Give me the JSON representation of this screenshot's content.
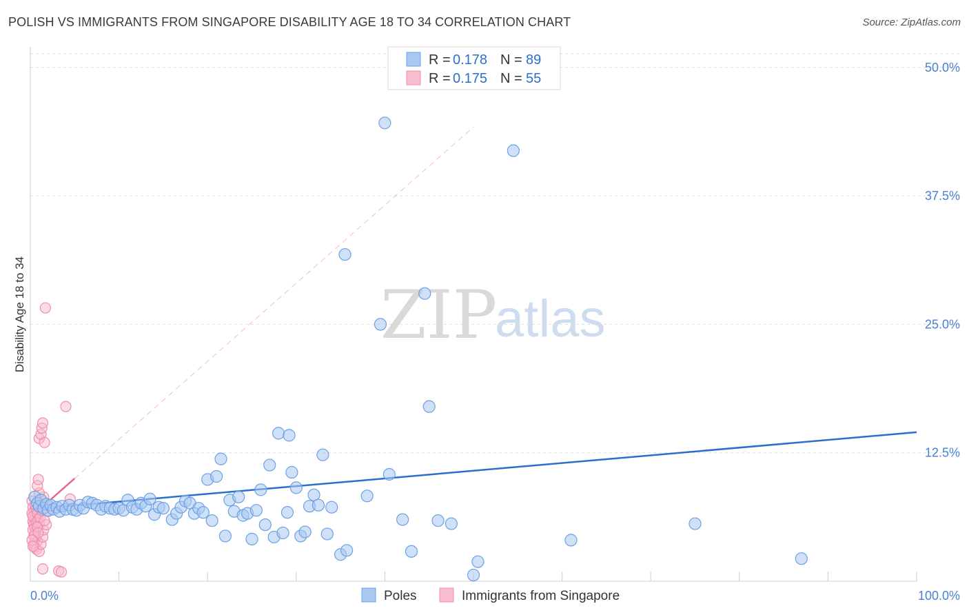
{
  "header": {
    "title": "POLISH VS IMMIGRANTS FROM SINGAPORE DISABILITY AGE 18 TO 34 CORRELATION CHART",
    "source": "Source: ZipAtlas.com"
  },
  "watermark": {
    "zip": "ZIP",
    "atlas": "atlas"
  },
  "colors": {
    "poles": "#6aa0e6",
    "poles_fill": "#a9c8f0",
    "poles_line": "#2a6fcc",
    "singapore": "#f08cab",
    "singapore_fill": "#f7bccd",
    "singapore_line": "#e8668c",
    "tick_label": "#4a7fd4"
  },
  "legend": {
    "rows": [
      {
        "r_label": "R = ",
        "r_value": "0.178",
        "n_label": "N = ",
        "n_value": "89"
      },
      {
        "r_label": "R = ",
        "r_value": "0.175",
        "n_label": "N = ",
        "n_value": "55"
      }
    ],
    "series": [
      "Poles",
      "Immigrants from Singapore"
    ]
  },
  "chart_data": {
    "type": "scatter",
    "title": "POLISH VS IMMIGRANTS FROM SINGAPORE DISABILITY AGE 18 TO 34 CORRELATION CHART",
    "xlabel": "",
    "ylabel": "Disability Age 18 to 34",
    "xlim": [
      0,
      100
    ],
    "ylim": [
      0,
      52
    ],
    "x_tick_labels": [
      "0.0%",
      "100.0%"
    ],
    "y_ticks": [
      12.5,
      25.0,
      37.5,
      50.0
    ],
    "y_tick_labels": [
      "12.5%",
      "25.0%",
      "37.5%",
      "50.0%"
    ],
    "series": [
      {
        "name": "Poles",
        "r": 0.178,
        "n": 89,
        "trend": {
          "x": [
            0,
            100
          ],
          "y": [
            7.0,
            14.5
          ]
        },
        "points": [
          [
            0.5,
            8.2
          ],
          [
            0.8,
            7.6
          ],
          [
            1.0,
            7.3
          ],
          [
            1.2,
            7.9
          ],
          [
            1.5,
            7.1
          ],
          [
            1.8,
            7.5
          ],
          [
            2.0,
            6.9
          ],
          [
            2.3,
            7.4
          ],
          [
            2.6,
            7.0
          ],
          [
            3.0,
            7.2
          ],
          [
            3.3,
            6.8
          ],
          [
            3.6,
            7.3
          ],
          [
            4.0,
            7.0
          ],
          [
            4.4,
            7.4
          ],
          [
            4.8,
            7.0
          ],
          [
            5.2,
            6.9
          ],
          [
            5.6,
            7.4
          ],
          [
            6.0,
            7.1
          ],
          [
            6.5,
            7.7
          ],
          [
            7.0,
            7.6
          ],
          [
            7.5,
            7.4
          ],
          [
            8.0,
            7.0
          ],
          [
            8.5,
            7.3
          ],
          [
            9.0,
            7.1
          ],
          [
            9.5,
            7.0
          ],
          [
            10.0,
            7.1
          ],
          [
            10.5,
            6.9
          ],
          [
            11.0,
            7.9
          ],
          [
            11.5,
            7.2
          ],
          [
            12.0,
            7.0
          ],
          [
            12.5,
            7.6
          ],
          [
            13.0,
            7.3
          ],
          [
            13.5,
            8.0
          ],
          [
            14.0,
            6.5
          ],
          [
            14.5,
            7.2
          ],
          [
            15.0,
            7.1
          ],
          [
            16.0,
            6.0
          ],
          [
            16.5,
            6.6
          ],
          [
            17.0,
            7.2
          ],
          [
            17.5,
            7.8
          ],
          [
            18.0,
            7.6
          ],
          [
            18.5,
            6.6
          ],
          [
            19.0,
            7.1
          ],
          [
            19.5,
            6.7
          ],
          [
            20.0,
            9.9
          ],
          [
            20.5,
            5.9
          ],
          [
            21.0,
            10.2
          ],
          [
            21.5,
            11.9
          ],
          [
            22.0,
            4.4
          ],
          [
            22.5,
            7.9
          ],
          [
            23.0,
            6.8
          ],
          [
            23.5,
            8.2
          ],
          [
            24.0,
            6.4
          ],
          [
            24.5,
            6.6
          ],
          [
            25.0,
            4.1
          ],
          [
            25.5,
            6.9
          ],
          [
            26.0,
            8.9
          ],
          [
            26.5,
            5.5
          ],
          [
            27.0,
            11.3
          ],
          [
            27.5,
            4.3
          ],
          [
            28.0,
            14.4
          ],
          [
            28.5,
            4.7
          ],
          [
            29.0,
            6.7
          ],
          [
            29.2,
            14.2
          ],
          [
            29.5,
            10.6
          ],
          [
            30.0,
            9.1
          ],
          [
            30.5,
            4.4
          ],
          [
            31.0,
            4.8
          ],
          [
            31.5,
            7.3
          ],
          [
            32.0,
            8.4
          ],
          [
            32.5,
            7.4
          ],
          [
            33.0,
            12.3
          ],
          [
            33.5,
            4.6
          ],
          [
            34.0,
            7.2
          ],
          [
            35.0,
            2.6
          ],
          [
            35.7,
            3.0
          ],
          [
            38.0,
            8.3
          ],
          [
            40.0,
            44.6
          ],
          [
            40.5,
            10.4
          ],
          [
            42.0,
            6.0
          ],
          [
            43.0,
            2.9
          ],
          [
            44.5,
            28.0
          ],
          [
            45.0,
            17.0
          ],
          [
            46.0,
            5.9
          ],
          [
            47.5,
            5.6
          ],
          [
            50.0,
            0.6
          ],
          [
            50.5,
            1.9
          ],
          [
            54.5,
            41.9
          ],
          [
            61.0,
            4.0
          ],
          [
            75.0,
            5.6
          ],
          [
            87.0,
            2.2
          ],
          [
            39.5,
            25.0
          ],
          [
            35.5,
            31.8
          ]
        ]
      },
      {
        "name": "Immigrants from Singapore",
        "r": 0.175,
        "n": 55,
        "trend": {
          "x": [
            0,
            5
          ],
          "y": [
            6.2,
            10.0
          ]
        },
        "points": [
          [
            0.2,
            7.8
          ],
          [
            0.3,
            7.2
          ],
          [
            0.4,
            6.8
          ],
          [
            0.5,
            6.4
          ],
          [
            0.6,
            6.1
          ],
          [
            0.3,
            5.8
          ],
          [
            0.4,
            5.5
          ],
          [
            0.5,
            5.2
          ],
          [
            0.6,
            4.9
          ],
          [
            0.2,
            6.6
          ],
          [
            0.3,
            6.3
          ],
          [
            0.7,
            7.0
          ],
          [
            0.8,
            6.6
          ],
          [
            0.9,
            6.0
          ],
          [
            1.0,
            5.6
          ],
          [
            0.5,
            4.6
          ],
          [
            0.6,
            4.2
          ],
          [
            0.8,
            3.9
          ],
          [
            0.4,
            3.6
          ],
          [
            0.5,
            3.3
          ],
          [
            0.7,
            3.1
          ],
          [
            1.0,
            2.9
          ],
          [
            1.2,
            3.6
          ],
          [
            1.4,
            4.3
          ],
          [
            1.5,
            5.0
          ],
          [
            1.8,
            5.5
          ],
          [
            2.0,
            6.8
          ],
          [
            1.2,
            7.5
          ],
          [
            1.5,
            8.2
          ],
          [
            1.0,
            8.6
          ],
          [
            0.8,
            9.3
          ],
          [
            0.9,
            9.9
          ],
          [
            1.0,
            13.9
          ],
          [
            1.2,
            14.3
          ],
          [
            1.3,
            14.9
          ],
          [
            1.4,
            15.4
          ],
          [
            1.6,
            13.5
          ],
          [
            1.7,
            26.6
          ],
          [
            4.0,
            17.0
          ],
          [
            4.5,
            8.0
          ],
          [
            1.4,
            1.2
          ],
          [
            3.2,
            1.0
          ],
          [
            3.5,
            0.9
          ],
          [
            0.3,
            5.0
          ],
          [
            0.4,
            4.4
          ],
          [
            0.6,
            7.4
          ],
          [
            0.7,
            5.7
          ],
          [
            0.8,
            5.3
          ],
          [
            0.9,
            4.7
          ],
          [
            1.1,
            6.2
          ],
          [
            1.3,
            6.9
          ],
          [
            0.2,
            4.0
          ],
          [
            0.3,
            3.4
          ],
          [
            1.6,
            5.9
          ],
          [
            2.2,
            7.3
          ]
        ]
      }
    ]
  }
}
